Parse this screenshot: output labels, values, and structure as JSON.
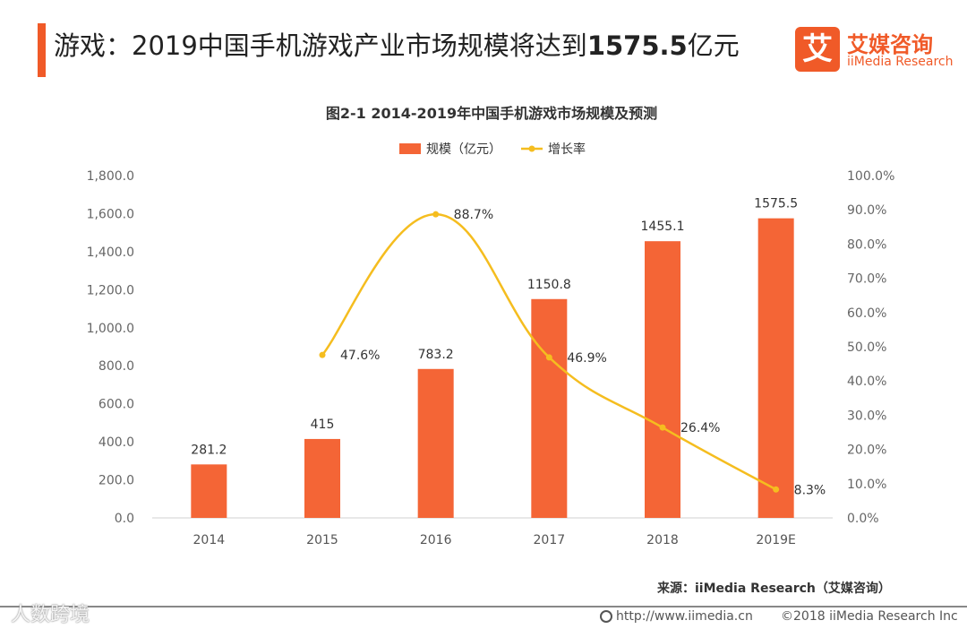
{
  "header": {
    "title_prefix": "游戏：2019中国手机游戏产业市场规模将达到",
    "title_number": "1575.5",
    "title_suffix": "亿元"
  },
  "logo": {
    "mark": "艾",
    "name_cn": "艾媒咨询",
    "name_en": "iiMedia Research",
    "color": "#f05a28"
  },
  "footer": {
    "source": "来源：iiMedia Research（艾媒咨询）",
    "url": "http://www.iimedia.cn",
    "copyright": "©2018  iiMedia Research  Inc",
    "watermark": "人数跨境"
  },
  "chart_data": {
    "type": "bar",
    "title": "图2-1 2014-2019年中国手机游戏市场规模及预测",
    "categories": [
      "2014",
      "2015",
      "2016",
      "2017",
      "2018",
      "2019E"
    ],
    "series": [
      {
        "name": "规模（亿元）",
        "type": "bar",
        "axis": "left",
        "color": "#f46536",
        "values": [
          281.2,
          415,
          783.2,
          1150.8,
          1455.1,
          1575.5
        ],
        "labels": [
          "281.2",
          "415",
          "783.2",
          "1150.8",
          "1455.1",
          "1575.5"
        ]
      },
      {
        "name": "增长率",
        "type": "line",
        "axis": "right",
        "color": "#f5bd1f",
        "values": [
          null,
          47.6,
          88.7,
          46.9,
          26.4,
          8.3
        ],
        "labels": [
          "",
          "47.6%",
          "88.7%",
          "46.9%",
          "26.4%",
          "8.3%"
        ]
      }
    ],
    "y_left": {
      "min": 0,
      "max": 1800,
      "ticks": [
        "0.0",
        "200.0",
        "400.0",
        "600.0",
        "800.0",
        "1,000.0",
        "1,200.0",
        "1,400.0",
        "1,600.0",
        "1,800.0"
      ]
    },
    "y_right": {
      "min": 0,
      "max": 100,
      "ticks": [
        "0.0%",
        "10.0%",
        "20.0%",
        "30.0%",
        "40.0%",
        "50.0%",
        "60.0%",
        "70.0%",
        "80.0%",
        "90.0%",
        "100.0%"
      ]
    },
    "legend": "top-center",
    "grid": false
  }
}
